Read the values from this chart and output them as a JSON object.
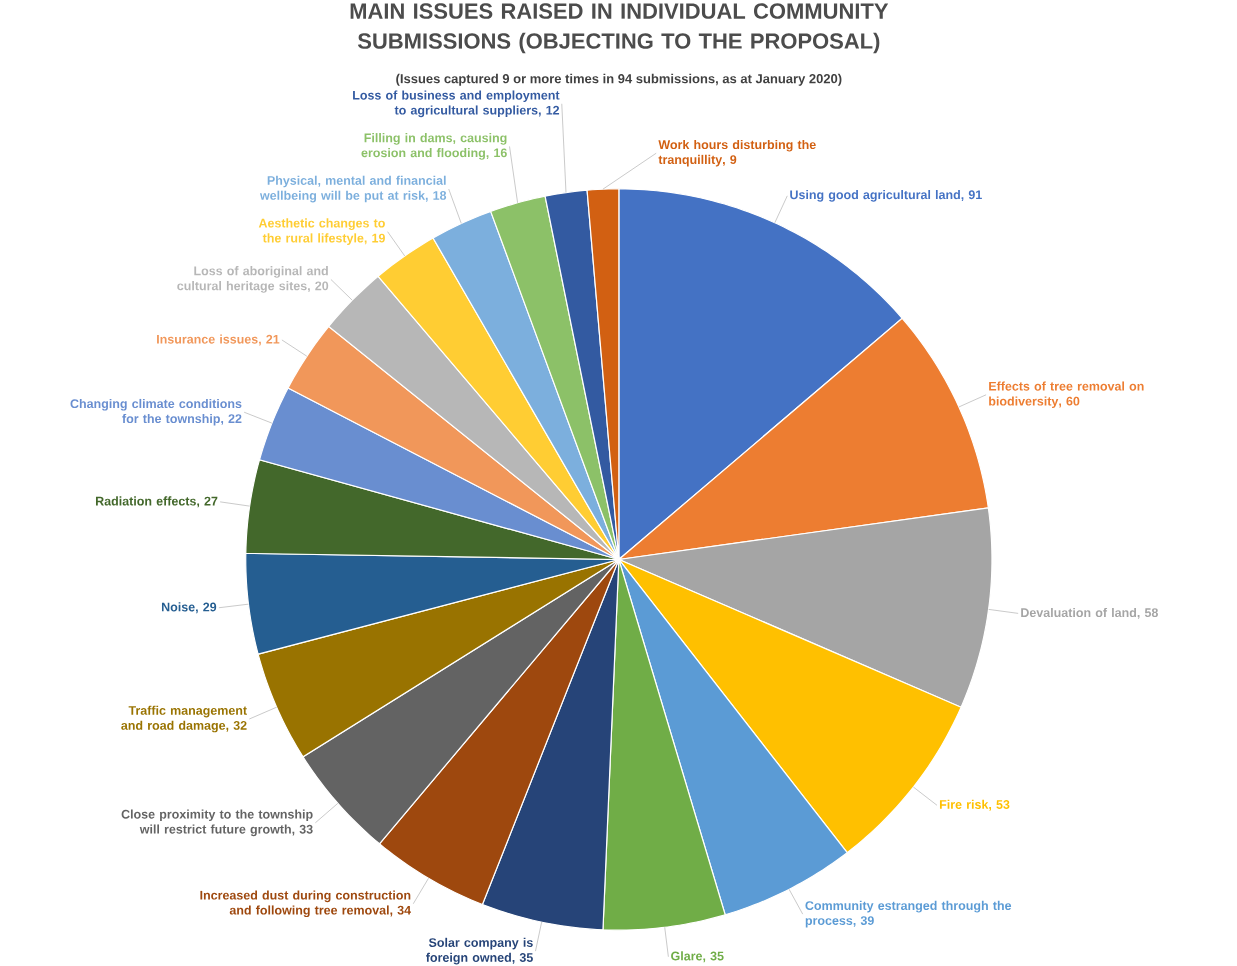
{
  "chart_data": {
    "type": "pie",
    "title": "MAIN ISSUES RAISED IN INDIVIDUAL COMMUNITY SUBMISSIONS (OBJECTING TO THE PROPOSAL)",
    "subtitle": "(Issues captured 9 or more times in 94 submissions, as at January 2020)",
    "categories": [
      "Using good agricultural land",
      "Effects of tree removal on biodiversity",
      "Devaluation of land",
      "Fire risk",
      "Community estranged through the process",
      "Glare",
      "Solar company is foreign owned",
      "Increased dust during construction and following tree removal",
      "Close proximity to the township will restrict future growth",
      "Traffic management and road damage",
      "Noise",
      "Radiation effects",
      "Changing climate conditions for the township",
      "Insurance issues",
      "Loss of aboriginal and cultural heritage sites",
      "Aesthetic changes to the rural lifestyle",
      "Physical, mental and financial wellbeing will be put at risk",
      "Filling in dams, causing erosion and flooding",
      "Loss of business and employment to agricultural suppliers",
      "Work hours disturbing the tranquillity"
    ],
    "values": [
      91,
      60,
      58,
      53,
      39,
      35,
      35,
      34,
      33,
      32,
      29,
      27,
      22,
      21,
      20,
      19,
      18,
      16,
      12,
      9
    ],
    "colors": [
      "#4472c4",
      "#ed7d31",
      "#a5a5a5",
      "#ffc000",
      "#5b9bd5",
      "#70ad47",
      "#264478",
      "#9e480e",
      "#636363",
      "#997300",
      "#255e91",
      "#43682b",
      "#698ed0",
      "#f1975a",
      "#b7b7b7",
      "#ffcd33",
      "#7cafdd",
      "#8cc168",
      "#335aa1",
      "#d26012"
    ],
    "value_labels": [
      ", 91",
      ", 60",
      ", 58",
      ", 53",
      ", 39",
      ", 35",
      ", 35",
      ", 34",
      ", 33",
      ", 32",
      ", 29",
      ", 27",
      ", 22",
      ", 21",
      ", 20",
      ", 19",
      ", 18",
      ", 16",
      ", 12",
      ", 9"
    ]
  }
}
